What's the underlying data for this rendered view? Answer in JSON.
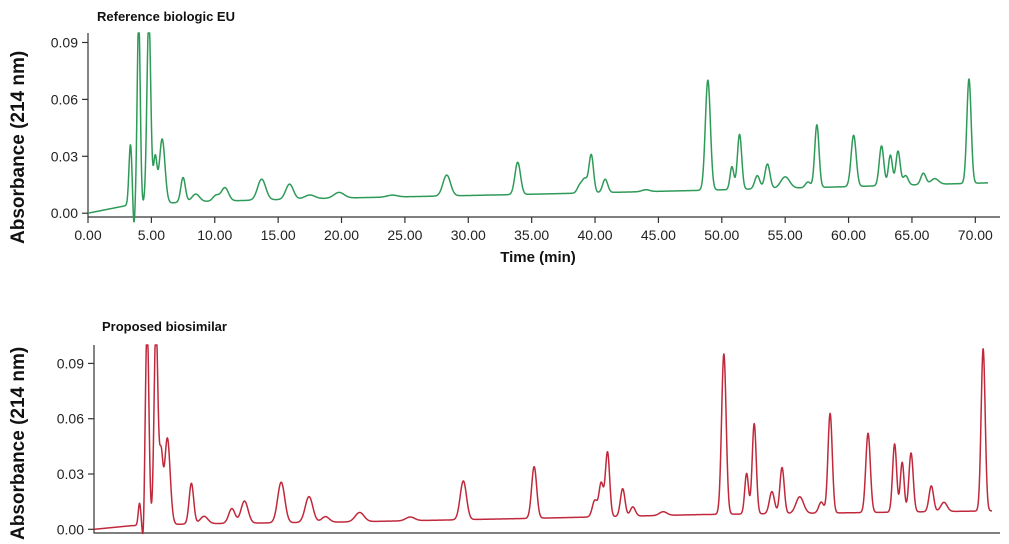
{
  "chart_data": [
    {
      "type": "line",
      "title": "Reference biologic EU",
      "xlabel": "Time (min)",
      "ylabel": "Absorbance (214 nm)",
      "xlim": [
        0,
        71
      ],
      "ylim": [
        -0.002,
        0.095
      ],
      "x_ticks": [
        "0.00",
        "5.00",
        "10.00",
        "15.00",
        "20.00",
        "25.00",
        "30.00",
        "35.00",
        "40.00",
        "45.00",
        "50.00",
        "55.00",
        "60.00",
        "65.00",
        "70.00"
      ],
      "y_ticks": [
        "0.00",
        "0.03",
        "0.06",
        "0.09"
      ],
      "color": "#2e9a58",
      "grid": false,
      "baseline": [
        [
          0,
          0.0
        ],
        [
          3,
          0.004
        ],
        [
          8,
          0.006
        ],
        [
          20,
          0.008
        ],
        [
          35,
          0.01
        ],
        [
          48,
          0.012
        ],
        [
          60,
          0.014
        ],
        [
          71,
          0.016
        ]
      ],
      "peaks": [
        {
          "t": 3.35,
          "h": 0.032,
          "w": 0.12
        },
        {
          "t": 3.62,
          "h": -0.012,
          "w": 0.08
        },
        {
          "t": 4.0,
          "h": 0.1,
          "w": 0.12
        },
        {
          "t": 4.8,
          "h": 0.1,
          "w": 0.15
        },
        {
          "t": 5.3,
          "h": 0.024,
          "w": 0.14
        },
        {
          "t": 5.85,
          "h": 0.034,
          "w": 0.22
        },
        {
          "t": 7.5,
          "h": 0.013,
          "w": 0.18
        },
        {
          "t": 8.5,
          "h": 0.004,
          "w": 0.3
        },
        {
          "t": 10.1,
          "h": 0.003,
          "w": 0.25
        },
        {
          "t": 10.8,
          "h": 0.007,
          "w": 0.28
        },
        {
          "t": 13.7,
          "h": 0.011,
          "w": 0.32
        },
        {
          "t": 15.9,
          "h": 0.008,
          "w": 0.3
        },
        {
          "t": 17.5,
          "h": 0.002,
          "w": 0.4
        },
        {
          "t": 19.8,
          "h": 0.003,
          "w": 0.4
        },
        {
          "t": 24.0,
          "h": 0.001,
          "w": 0.4
        },
        {
          "t": 28.3,
          "h": 0.011,
          "w": 0.3
        },
        {
          "t": 33.9,
          "h": 0.017,
          "w": 0.22
        },
        {
          "t": 38.8,
          "h": 0.004,
          "w": 0.2
        },
        {
          "t": 39.2,
          "h": 0.007,
          "w": 0.2
        },
        {
          "t": 39.7,
          "h": 0.02,
          "w": 0.18
        },
        {
          "t": 40.8,
          "h": 0.007,
          "w": 0.2
        },
        {
          "t": 44.0,
          "h": 0.001,
          "w": 0.3
        },
        {
          "t": 48.9,
          "h": 0.058,
          "w": 0.2
        },
        {
          "t": 50.8,
          "h": 0.012,
          "w": 0.15
        },
        {
          "t": 51.4,
          "h": 0.029,
          "w": 0.17
        },
        {
          "t": 52.8,
          "h": 0.007,
          "w": 0.2
        },
        {
          "t": 53.6,
          "h": 0.013,
          "w": 0.2
        },
        {
          "t": 55.0,
          "h": 0.006,
          "w": 0.35
        },
        {
          "t": 56.8,
          "h": 0.003,
          "w": 0.2
        },
        {
          "t": 57.5,
          "h": 0.033,
          "w": 0.17
        },
        {
          "t": 60.4,
          "h": 0.027,
          "w": 0.2
        },
        {
          "t": 62.6,
          "h": 0.021,
          "w": 0.18
        },
        {
          "t": 63.3,
          "h": 0.016,
          "w": 0.16
        },
        {
          "t": 63.9,
          "h": 0.018,
          "w": 0.17
        },
        {
          "t": 64.5,
          "h": 0.005,
          "w": 0.2
        },
        {
          "t": 65.9,
          "h": 0.006,
          "w": 0.2
        },
        {
          "t": 66.8,
          "h": 0.003,
          "w": 0.3
        },
        {
          "t": 69.5,
          "h": 0.055,
          "w": 0.17
        }
      ]
    },
    {
      "type": "line",
      "title": "Proposed biosimilar",
      "xlabel": "",
      "ylabel": "Absorbance (214 nm)",
      "xlim": [
        0,
        71
      ],
      "ylim": [
        -0.002,
        0.1
      ],
      "x_ticks": [],
      "y_ticks": [
        "0.00",
        "0.03",
        "0.06",
        "0.09"
      ],
      "color": "#c0283b",
      "grid": false,
      "baseline": [
        [
          0,
          0.0
        ],
        [
          3,
          0.002
        ],
        [
          8,
          0.003
        ],
        [
          20,
          0.004
        ],
        [
          35,
          0.006
        ],
        [
          48,
          0.008
        ],
        [
          60,
          0.009
        ],
        [
          71,
          0.01
        ]
      ],
      "peaks": [
        {
          "t": 3.6,
          "h": 0.012,
          "w": 0.1
        },
        {
          "t": 3.9,
          "h": -0.012,
          "w": 0.08
        },
        {
          "t": 4.2,
          "h": 0.11,
          "w": 0.14
        },
        {
          "t": 4.9,
          "h": 0.11,
          "w": 0.15
        },
        {
          "t": 5.3,
          "h": 0.036,
          "w": 0.14
        },
        {
          "t": 5.8,
          "h": 0.047,
          "w": 0.22
        },
        {
          "t": 7.7,
          "h": 0.022,
          "w": 0.18
        },
        {
          "t": 8.7,
          "h": 0.004,
          "w": 0.3
        },
        {
          "t": 10.9,
          "h": 0.008,
          "w": 0.25
        },
        {
          "t": 11.9,
          "h": 0.012,
          "w": 0.28
        },
        {
          "t": 14.8,
          "h": 0.022,
          "w": 0.28
        },
        {
          "t": 17.0,
          "h": 0.014,
          "w": 0.3
        },
        {
          "t": 18.3,
          "h": 0.003,
          "w": 0.3
        },
        {
          "t": 21.0,
          "h": 0.005,
          "w": 0.35
        },
        {
          "t": 25.0,
          "h": 0.002,
          "w": 0.35
        },
        {
          "t": 29.2,
          "h": 0.021,
          "w": 0.25
        },
        {
          "t": 34.8,
          "h": 0.028,
          "w": 0.2
        },
        {
          "t": 39.6,
          "h": 0.009,
          "w": 0.2
        },
        {
          "t": 40.1,
          "h": 0.018,
          "w": 0.17
        },
        {
          "t": 40.6,
          "h": 0.035,
          "w": 0.17
        },
        {
          "t": 41.8,
          "h": 0.015,
          "w": 0.18
        },
        {
          "t": 42.6,
          "h": 0.005,
          "w": 0.2
        },
        {
          "t": 45.0,
          "h": 0.002,
          "w": 0.3
        },
        {
          "t": 49.8,
          "h": 0.087,
          "w": 0.18
        },
        {
          "t": 51.6,
          "h": 0.022,
          "w": 0.15
        },
        {
          "t": 52.2,
          "h": 0.049,
          "w": 0.16
        },
        {
          "t": 53.6,
          "h": 0.012,
          "w": 0.2
        },
        {
          "t": 54.4,
          "h": 0.025,
          "w": 0.17
        },
        {
          "t": 55.8,
          "h": 0.009,
          "w": 0.3
        },
        {
          "t": 57.5,
          "h": 0.006,
          "w": 0.2
        },
        {
          "t": 58.2,
          "h": 0.054,
          "w": 0.17
        },
        {
          "t": 61.2,
          "h": 0.043,
          "w": 0.18
        },
        {
          "t": 63.3,
          "h": 0.037,
          "w": 0.16
        },
        {
          "t": 63.9,
          "h": 0.027,
          "w": 0.15
        },
        {
          "t": 64.6,
          "h": 0.032,
          "w": 0.17
        },
        {
          "t": 66.2,
          "h": 0.014,
          "w": 0.18
        },
        {
          "t": 67.2,
          "h": 0.005,
          "w": 0.25
        },
        {
          "t": 70.3,
          "h": 0.088,
          "w": 0.16
        }
      ]
    }
  ]
}
